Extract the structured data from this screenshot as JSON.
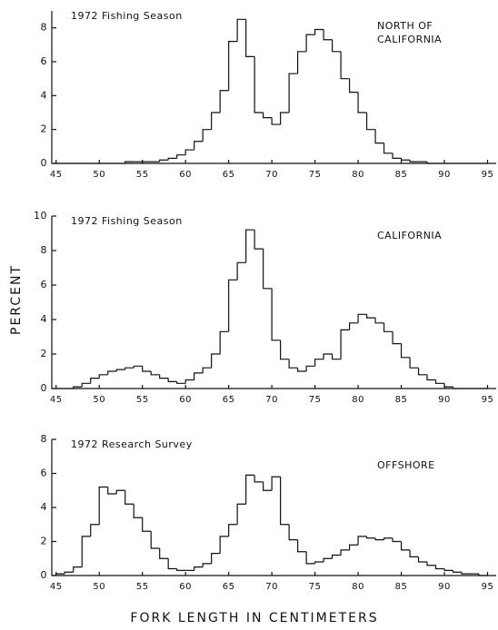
{
  "ylabel": "PERCENT",
  "xlabel": "FORK LENGTH IN CENTIMETERS",
  "chart_data": [
    {
      "type": "histogram",
      "title": "1972 Fishing Season",
      "annotation": [
        "NORTH OF",
        "CALIFORNIA"
      ],
      "bins": [
        45,
        46,
        47,
        48,
        49,
        50,
        51,
        52,
        53,
        54,
        55,
        56,
        57,
        58,
        59,
        60,
        61,
        62,
        63,
        64,
        65,
        66,
        67,
        68,
        69,
        70,
        71,
        72,
        73,
        74,
        75,
        76,
        77,
        78,
        79,
        80,
        81,
        82,
        83,
        84,
        85,
        86,
        87,
        88,
        89,
        90,
        91,
        92,
        93,
        94,
        95
      ],
      "values": [
        0,
        0,
        0,
        0,
        0,
        0,
        0,
        0,
        0.1,
        0.1,
        0.1,
        0.1,
        0.2,
        0.3,
        0.5,
        0.8,
        1.3,
        2.0,
        3.0,
        4.3,
        7.2,
        8.5,
        6.3,
        3.0,
        2.7,
        2.3,
        3.0,
        5.3,
        6.6,
        7.6,
        7.9,
        7.3,
        6.6,
        5.0,
        4.2,
        3.0,
        2.0,
        1.2,
        0.6,
        0.3,
        0.2,
        0.1,
        0.1,
        0,
        0,
        0,
        0,
        0,
        0,
        0
      ],
      "xlim": [
        44.5,
        96
      ],
      "xticks": [
        45,
        50,
        55,
        60,
        65,
        70,
        75,
        80,
        85,
        90,
        95
      ],
      "ylim": [
        0,
        9
      ],
      "yticks": [
        0,
        2,
        4,
        6,
        8
      ],
      "color": "#111111"
    },
    {
      "type": "histogram",
      "title": "1972 Fishing Season",
      "annotation": [
        "CALIFORNIA"
      ],
      "bins": [
        45,
        46,
        47,
        48,
        49,
        50,
        51,
        52,
        53,
        54,
        55,
        56,
        57,
        58,
        59,
        60,
        61,
        62,
        63,
        64,
        65,
        66,
        67,
        68,
        69,
        70,
        71,
        72,
        73,
        74,
        75,
        76,
        77,
        78,
        79,
        80,
        81,
        82,
        83,
        84,
        85,
        86,
        87,
        88,
        89,
        90,
        91,
        92,
        93,
        94,
        95
      ],
      "values": [
        0,
        0,
        0.1,
        0.3,
        0.6,
        0.8,
        1.0,
        1.1,
        1.2,
        1.3,
        1.0,
        0.8,
        0.6,
        0.4,
        0.3,
        0.5,
        0.9,
        1.2,
        2.0,
        3.3,
        6.3,
        7.3,
        9.2,
        8.1,
        5.8,
        2.8,
        1.7,
        1.2,
        1.0,
        1.3,
        1.7,
        2.0,
        1.7,
        3.4,
        3.8,
        4.3,
        4.1,
        3.8,
        3.3,
        2.6,
        1.8,
        1.2,
        0.8,
        0.5,
        0.3,
        0.1,
        0,
        0,
        0,
        0
      ],
      "xlim": [
        44.5,
        96
      ],
      "xticks": [
        45,
        50,
        55,
        60,
        65,
        70,
        75,
        80,
        85,
        90,
        95
      ],
      "ylim": [
        0,
        10
      ],
      "yticks": [
        0,
        2,
        4,
        6,
        8,
        10
      ],
      "color": "#111111"
    },
    {
      "type": "histogram",
      "title": "1972 Research Survey",
      "annotation": [
        "OFFSHORE"
      ],
      "bins": [
        45,
        46,
        47,
        48,
        49,
        50,
        51,
        52,
        53,
        54,
        55,
        56,
        57,
        58,
        59,
        60,
        61,
        62,
        63,
        64,
        65,
        66,
        67,
        68,
        69,
        70,
        71,
        72,
        73,
        74,
        75,
        76,
        77,
        78,
        79,
        80,
        81,
        82,
        83,
        84,
        85,
        86,
        87,
        88,
        89,
        90,
        91,
        92,
        93,
        94,
        95
      ],
      "values": [
        0.1,
        0.2,
        0.5,
        2.3,
        3.0,
        5.2,
        4.8,
        5.0,
        4.2,
        3.4,
        2.6,
        1.6,
        1.0,
        0.4,
        0.3,
        0.3,
        0.5,
        0.7,
        1.3,
        2.3,
        3.0,
        4.2,
        5.9,
        5.5,
        5.0,
        5.8,
        3.0,
        2.1,
        1.4,
        0.7,
        0.8,
        1.0,
        1.2,
        1.5,
        1.8,
        2.3,
        2.2,
        2.1,
        2.2,
        2.0,
        1.5,
        1.1,
        0.8,
        0.6,
        0.4,
        0.3,
        0.2,
        0.1,
        0.1,
        0
      ],
      "xlim": [
        44.5,
        96
      ],
      "xticks": [
        45,
        50,
        55,
        60,
        65,
        70,
        75,
        80,
        85,
        90,
        95
      ],
      "ylim": [
        0,
        8
      ],
      "yticks": [
        0,
        2,
        4,
        6,
        8
      ],
      "color": "#111111"
    }
  ]
}
